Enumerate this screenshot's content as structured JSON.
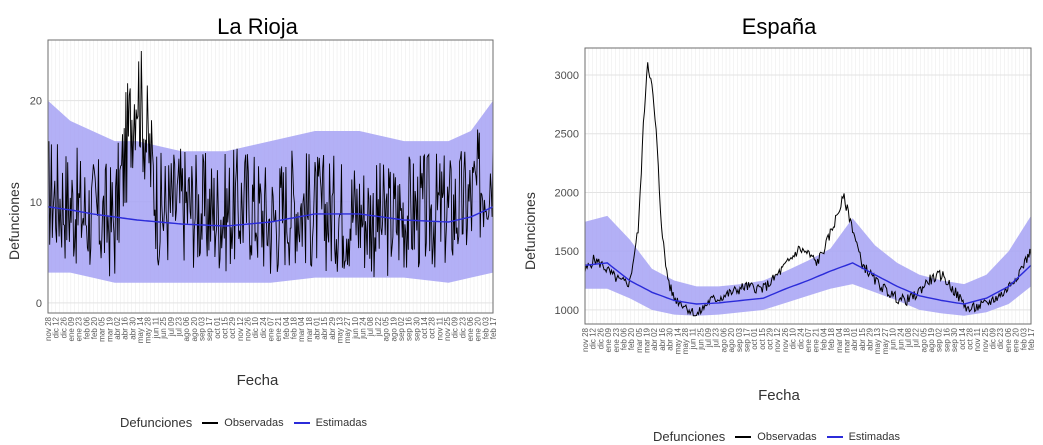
{
  "legend": {
    "title": "Defunciones",
    "observed_label": "Observadas",
    "estimated_label": "Estimadas"
  },
  "colors": {
    "observed": "#000000",
    "estimated": "#2b2bd9",
    "band": "#a6a2f4",
    "panel_bg": "#ffffff",
    "grid": "#ececec",
    "border": "#6e6e6e"
  },
  "chart_data": [
    {
      "type": "line",
      "title": "La Rioja",
      "xlabel": "Fecha",
      "ylabel": "Defunciones",
      "ylim": [
        -1,
        26
      ],
      "yticks": [
        0,
        10,
        20
      ],
      "grid": true,
      "x_tick_labels": [
        "nov 28",
        "dic 12",
        "dic 26",
        "ene 09",
        "ene 23",
        "feb 06",
        "feb 20",
        "mar 05",
        "mar 19",
        "abr 02",
        "abr 16",
        "abr 30",
        "may 14",
        "may 28",
        "jun 11",
        "jun 25",
        "jul 09",
        "jul 23",
        "ago 06",
        "ago 20",
        "sep 03",
        "sep 17",
        "oct 01",
        "oct 15",
        "oct 29",
        "nov 12",
        "nov 26",
        "dic 10",
        "dic 24",
        "ene 07",
        "ene 21",
        "feb 04",
        "feb 18",
        "mar 04",
        "mar 18",
        "abr 01",
        "abr 15",
        "abr 29",
        "may 13",
        "may 27",
        "jun 10",
        "jun 24",
        "jul 08",
        "jul 22",
        "ago 05",
        "ago 19",
        "sep 02",
        "sep 16",
        "sep 30",
        "oct 14",
        "oct 28",
        "nov 11",
        "nov 25",
        "dic 09",
        "dic 23",
        "ene 06",
        "ene 20",
        "feb 03",
        "feb 17"
      ],
      "series": [
        {
          "name": "Observadas",
          "x": [
            0,
            0.08,
            0.15,
            0.2,
            0.25,
            0.3,
            0.35,
            0.4,
            0.45,
            0.5,
            0.55,
            0.6,
            0.65,
            0.7,
            0.75,
            0.8,
            0.85,
            0.9,
            0.95,
            1
          ],
          "y": [
            11,
            9,
            8,
            22,
            9,
            10,
            9,
            9,
            10,
            8,
            10,
            9,
            9,
            9,
            8,
            9,
            9,
            9,
            10,
            14
          ]
        },
        {
          "name": "Estimadas",
          "x": [
            0,
            0.05,
            0.1,
            0.15,
            0.2,
            0.25,
            0.3,
            0.4,
            0.5,
            0.6,
            0.7,
            0.8,
            0.9,
            0.95,
            1
          ],
          "y": [
            9.5,
            9.2,
            8.8,
            8.5,
            8.2,
            8.0,
            7.8,
            7.6,
            8.0,
            8.8,
            8.8,
            8.2,
            8.0,
            8.5,
            9.5
          ]
        }
      ],
      "band": {
        "x": [
          0,
          0.05,
          0.1,
          0.15,
          0.2,
          0.3,
          0.4,
          0.5,
          0.6,
          0.7,
          0.8,
          0.9,
          0.95,
          1
        ],
        "lower": [
          3,
          3,
          2.5,
          2,
          2,
          2,
          2,
          2,
          2.5,
          2.5,
          2.5,
          2,
          2.5,
          3
        ],
        "upper": [
          20,
          18,
          17,
          16,
          16,
          15,
          15,
          16,
          17,
          17,
          16,
          16,
          17,
          20
        ]
      }
    },
    {
      "type": "line",
      "title": "España",
      "xlabel": "Fecha",
      "ylabel": "Defunciones",
      "ylim": [
        880,
        3230
      ],
      "yticks": [
        1000,
        1500,
        2000,
        2500,
        3000
      ],
      "grid": true,
      "x_tick_labels": [
        "nov 28",
        "dic 12",
        "dic 26",
        "ene 09",
        "ene 23",
        "feb 06",
        "feb 20",
        "mar 05",
        "mar 19",
        "abr 02",
        "abr 16",
        "abr 30",
        "may 14",
        "may 28",
        "jun 11",
        "jun 25",
        "jul 09",
        "jul 23",
        "ago 06",
        "ago 20",
        "sep 03",
        "sep 17",
        "oct 01",
        "oct 15",
        "oct 29",
        "nov 12",
        "nov 26",
        "dic 10",
        "dic 24",
        "ene 07",
        "ene 21",
        "feb 04",
        "feb 18",
        "mar 04",
        "mar 18",
        "abr 01",
        "abr 15",
        "abr 29",
        "may 13",
        "may 27",
        "jun 10",
        "jun 24",
        "jul 08",
        "jul 22",
        "ago 05",
        "ago 19",
        "sep 02",
        "sep 16",
        "sep 30",
        "oct 14",
        "oct 28",
        "nov 11",
        "nov 25",
        "dic 09",
        "dic 23",
        "ene 06",
        "ene 20",
        "feb 03",
        "feb 17"
      ],
      "series": [
        {
          "name": "Observadas",
          "x": [
            0,
            0.02,
            0.04,
            0.06,
            0.08,
            0.1,
            0.12,
            0.13,
            0.14,
            0.15,
            0.16,
            0.17,
            0.18,
            0.19,
            0.2,
            0.22,
            0.25,
            0.28,
            0.3,
            0.33,
            0.36,
            0.4,
            0.42,
            0.45,
            0.48,
            0.5,
            0.52,
            0.54,
            0.56,
            0.58,
            0.6,
            0.62,
            0.65,
            0.68,
            0.7,
            0.72,
            0.74,
            0.77,
            0.8,
            0.83,
            0.86,
            0.9,
            0.94,
            0.97,
            1
          ],
          "y": [
            1330,
            1430,
            1380,
            1300,
            1240,
            1230,
            1700,
            2500,
            3130,
            2900,
            2500,
            1800,
            1400,
            1200,
            1100,
            1050,
            950,
            1080,
            1100,
            1150,
            1200,
            1180,
            1250,
            1380,
            1520,
            1480,
            1400,
            1550,
            1750,
            1960,
            1700,
            1400,
            1250,
            1150,
            1100,
            1080,
            1120,
            1250,
            1300,
            1150,
            1000,
            1050,
            1150,
            1300,
            1500
          ]
        },
        {
          "name": "Estimadas",
          "x": [
            0,
            0.05,
            0.1,
            0.15,
            0.2,
            0.25,
            0.3,
            0.35,
            0.4,
            0.45,
            0.5,
            0.55,
            0.6,
            0.65,
            0.7,
            0.75,
            0.8,
            0.85,
            0.9,
            0.95,
            1
          ],
          "y": [
            1380,
            1400,
            1250,
            1150,
            1080,
            1050,
            1060,
            1080,
            1100,
            1180,
            1250,
            1330,
            1400,
            1300,
            1200,
            1120,
            1080,
            1050,
            1100,
            1200,
            1380
          ]
        }
      ],
      "band": {
        "x": [
          0,
          0.05,
          0.1,
          0.15,
          0.2,
          0.25,
          0.3,
          0.35,
          0.4,
          0.45,
          0.5,
          0.55,
          0.6,
          0.65,
          0.7,
          0.75,
          0.8,
          0.85,
          0.9,
          0.95,
          1
        ],
        "lower": [
          1180,
          1180,
          1100,
          1000,
          960,
          950,
          960,
          980,
          1000,
          1060,
          1120,
          1180,
          1220,
          1150,
          1080,
          1000,
          970,
          950,
          980,
          1050,
          1200
        ],
        "upper": [
          1750,
          1800,
          1600,
          1350,
          1250,
          1200,
          1200,
          1220,
          1250,
          1330,
          1420,
          1520,
          1780,
          1550,
          1400,
          1300,
          1250,
          1220,
          1300,
          1500,
          1800
        ]
      }
    }
  ]
}
